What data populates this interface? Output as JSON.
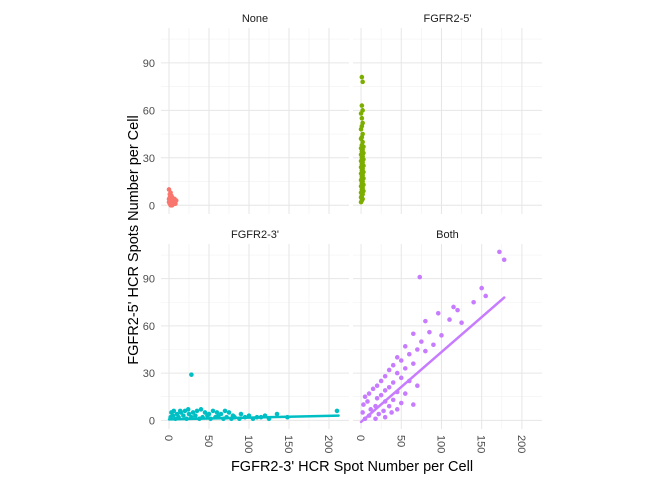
{
  "chart_data": {
    "type": "scatter",
    "layout": "facet-grid 2x2",
    "xlabel": "FGFR2-3' HCR Spot Number per Cell",
    "ylabel": "FGFR2-5' HCR Spots Number per Cell",
    "x_ticks": [
      "0",
      "50",
      "100",
      "150",
      "200"
    ],
    "y_ticks": [
      "0",
      "30",
      "60",
      "90"
    ],
    "xlim": [
      0,
      215
    ],
    "ylim": [
      0,
      112
    ],
    "grid": true,
    "legend": "none",
    "panels": [
      {
        "label": "None",
        "color": "#F8766D",
        "trend_line": null,
        "points": [
          [
            0,
            10
          ],
          [
            1,
            7
          ],
          [
            2,
            8
          ],
          [
            3,
            6
          ],
          [
            1,
            5
          ],
          [
            2,
            4
          ],
          [
            3,
            4
          ],
          [
            4,
            5
          ],
          [
            5,
            3
          ],
          [
            6,
            3
          ],
          [
            7,
            4
          ],
          [
            2,
            2
          ],
          [
            3,
            2
          ],
          [
            4,
            1
          ],
          [
            5,
            2
          ],
          [
            1,
            1
          ],
          [
            2,
            0
          ],
          [
            3,
            0
          ],
          [
            4,
            0
          ],
          [
            5,
            1
          ],
          [
            6,
            1
          ],
          [
            7,
            2
          ],
          [
            8,
            1
          ],
          [
            9,
            3
          ],
          [
            1,
            3
          ],
          [
            0,
            4
          ],
          [
            0,
            2
          ],
          [
            2,
            6
          ],
          [
            4,
            3
          ],
          [
            6,
            2
          ]
        ]
      },
      {
        "label": "FGFR2-5'",
        "color": "#7CAE00",
        "trend_line": null,
        "points": [
          [
            1,
            81
          ],
          [
            2,
            78
          ],
          [
            1,
            63
          ],
          [
            2,
            60
          ],
          [
            0,
            58
          ],
          [
            1,
            55
          ],
          [
            2,
            52
          ],
          [
            1,
            50
          ],
          [
            0,
            48
          ],
          [
            2,
            45
          ],
          [
            1,
            43
          ],
          [
            0,
            42
          ],
          [
            2,
            40
          ],
          [
            1,
            38
          ],
          [
            3,
            37
          ],
          [
            0,
            36
          ],
          [
            2,
            35
          ],
          [
            1,
            34
          ],
          [
            3,
            33
          ],
          [
            0,
            32
          ],
          [
            2,
            31
          ],
          [
            1,
            30
          ],
          [
            3,
            29
          ],
          [
            0,
            28
          ],
          [
            2,
            27
          ],
          [
            1,
            26
          ],
          [
            3,
            25
          ],
          [
            0,
            24
          ],
          [
            2,
            23
          ],
          [
            1,
            22
          ],
          [
            3,
            21
          ],
          [
            0,
            20
          ],
          [
            2,
            19
          ],
          [
            1,
            18
          ],
          [
            3,
            17
          ],
          [
            0,
            16
          ],
          [
            2,
            15
          ],
          [
            1,
            14
          ],
          [
            3,
            13
          ],
          [
            0,
            12
          ],
          [
            2,
            11
          ],
          [
            1,
            10
          ],
          [
            3,
            9
          ],
          [
            0,
            8
          ],
          [
            2,
            7
          ],
          [
            1,
            6
          ],
          [
            0,
            5
          ],
          [
            2,
            4
          ],
          [
            1,
            3
          ],
          [
            0,
            2
          ]
        ]
      },
      {
        "label": "FGFR2-3'",
        "color": "#00BFC4",
        "trend_line": [
          [
            0,
            0.6
          ],
          [
            212,
            3
          ]
        ],
        "points": [
          [
            28,
            29
          ],
          [
            210,
            6
          ],
          [
            135,
            4
          ],
          [
            148,
            2
          ],
          [
            120,
            3
          ],
          [
            110,
            2
          ],
          [
            100,
            3
          ],
          [
            90,
            4
          ],
          [
            80,
            3
          ],
          [
            75,
            5
          ],
          [
            70,
            6
          ],
          [
            65,
            4
          ],
          [
            60,
            5
          ],
          [
            55,
            6
          ],
          [
            50,
            4
          ],
          [
            45,
            5
          ],
          [
            40,
            7
          ],
          [
            35,
            6
          ],
          [
            30,
            5
          ],
          [
            25,
            4
          ],
          [
            20,
            6
          ],
          [
            15,
            5
          ],
          [
            10,
            4
          ],
          [
            5,
            3
          ],
          [
            2,
            2
          ],
          [
            8,
            1
          ],
          [
            12,
            2
          ],
          [
            18,
            3
          ],
          [
            22,
            1
          ],
          [
            28,
            2
          ],
          [
            33,
            3
          ],
          [
            38,
            1
          ],
          [
            42,
            2
          ],
          [
            48,
            3
          ],
          [
            52,
            1
          ],
          [
            58,
            2
          ],
          [
            62,
            3
          ],
          [
            68,
            1
          ],
          [
            72,
            2
          ],
          [
            78,
            1
          ],
          [
            82,
            2
          ],
          [
            88,
            1
          ],
          [
            95,
            2
          ],
          [
            105,
            1
          ],
          [
            115,
            2
          ],
          [
            125,
            1
          ],
          [
            3,
            5
          ],
          [
            6,
            6
          ],
          [
            14,
            6
          ],
          [
            24,
            7
          ]
        ]
      },
      {
        "label": "Both",
        "color": "#C77CFF",
        "trend_line": [
          [
            0,
            -1
          ],
          [
            178,
            78
          ]
        ],
        "points": [
          [
            172,
            107
          ],
          [
            178,
            102
          ],
          [
            73,
            91
          ],
          [
            150,
            84
          ],
          [
            155,
            79
          ],
          [
            140,
            75
          ],
          [
            115,
            72
          ],
          [
            120,
            70
          ],
          [
            96,
            68
          ],
          [
            110,
            64
          ],
          [
            125,
            62
          ],
          [
            80,
            63
          ],
          [
            65,
            55
          ],
          [
            85,
            56
          ],
          [
            100,
            54
          ],
          [
            75,
            50
          ],
          [
            90,
            48
          ],
          [
            55,
            47
          ],
          [
            70,
            45
          ],
          [
            80,
            44
          ],
          [
            60,
            42
          ],
          [
            45,
            40
          ],
          [
            50,
            38
          ],
          [
            65,
            36
          ],
          [
            40,
            35
          ],
          [
            55,
            33
          ],
          [
            35,
            32
          ],
          [
            45,
            30
          ],
          [
            30,
            28
          ],
          [
            50,
            27
          ],
          [
            25,
            25
          ],
          [
            40,
            24
          ],
          [
            60,
            25
          ],
          [
            20,
            22
          ],
          [
            35,
            21
          ],
          [
            70,
            22
          ],
          [
            15,
            20
          ],
          [
            30,
            19
          ],
          [
            45,
            18
          ],
          [
            10,
            17
          ],
          [
            25,
            16
          ],
          [
            55,
            17
          ],
          [
            5,
            15
          ],
          [
            20,
            14
          ],
          [
            40,
            13
          ],
          [
            8,
            12
          ],
          [
            30,
            12
          ],
          [
            50,
            11
          ],
          [
            3,
            10
          ],
          [
            18,
            9
          ],
          [
            35,
            9
          ],
          [
            65,
            10
          ],
          [
            12,
            7
          ],
          [
            28,
            6
          ],
          [
            45,
            7
          ],
          [
            2,
            5
          ],
          [
            22,
            4
          ],
          [
            38,
            5
          ],
          [
            10,
            3
          ],
          [
            30,
            2
          ],
          [
            5,
            1
          ],
          [
            18,
            1
          ]
        ]
      }
    ]
  }
}
